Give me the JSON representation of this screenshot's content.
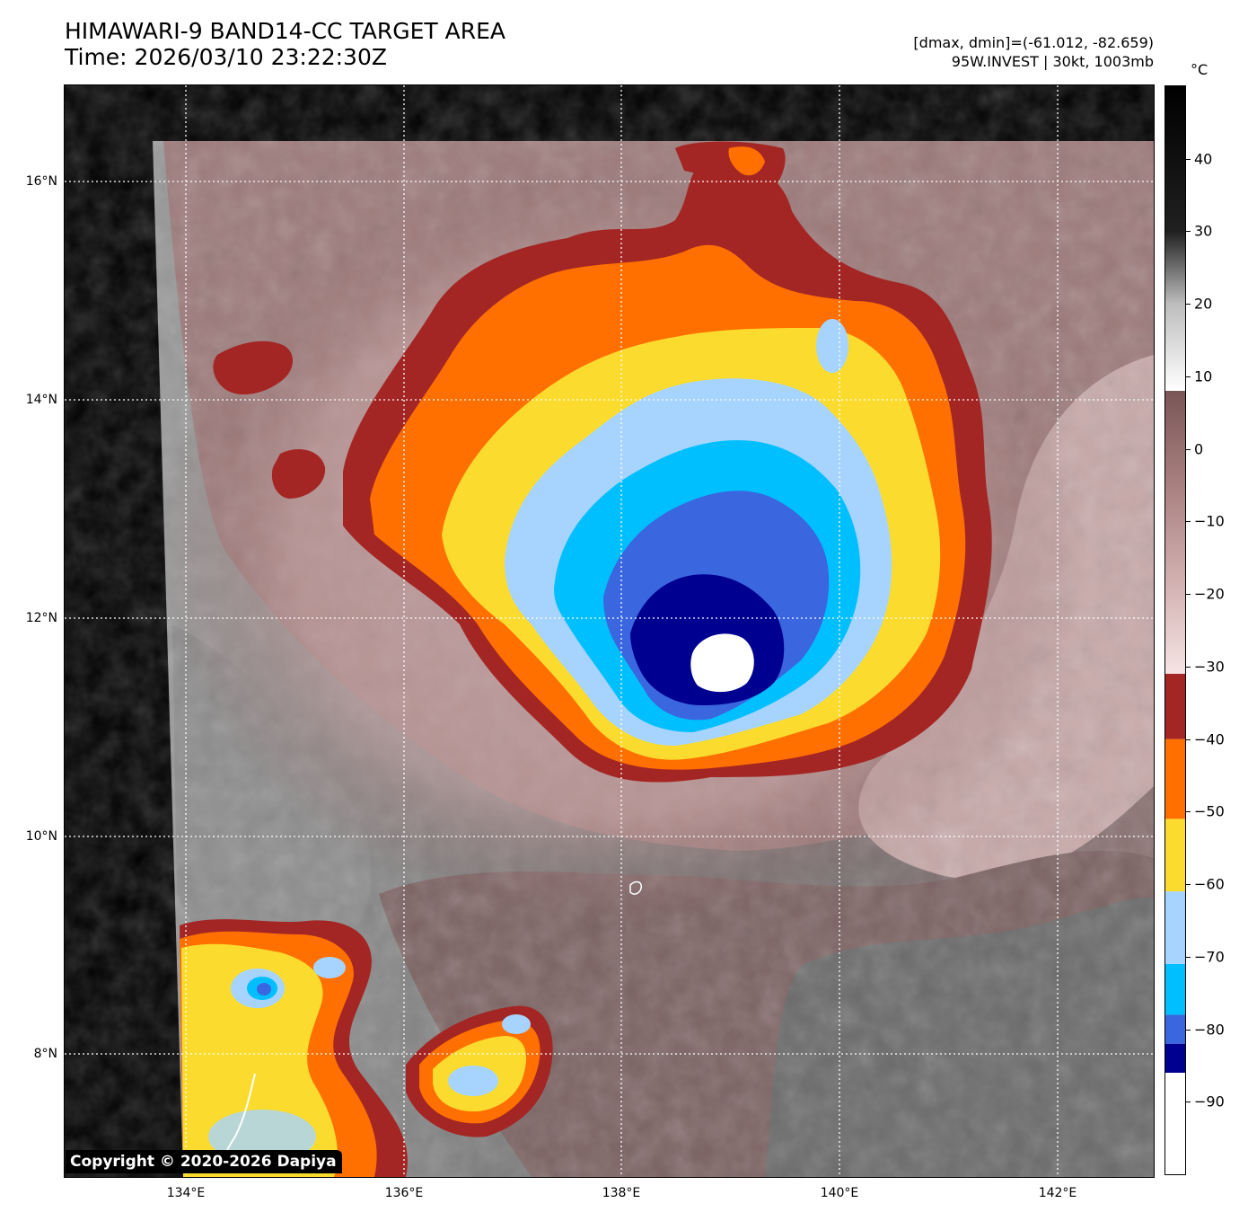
{
  "title": {
    "line1": "HIMAWARI-9 BAND14-CC TARGET AREA",
    "line2": "Time: 2026/03/10 23:22:30Z"
  },
  "info": {
    "line1": "[dmax, dmin]=(-61.012, -82.659)",
    "line2": "95W.INVEST | 30kt, 1003mb"
  },
  "map": {
    "lat_labels": [
      "16°N",
      "14°N",
      "12°N",
      "10°N",
      "8°N"
    ],
    "lon_labels": [
      "134°E",
      "136°E",
      "138°E",
      "140°E",
      "142°E"
    ],
    "lat_values": [
      16,
      14,
      12,
      10,
      8
    ],
    "lon_values": [
      134,
      136,
      138,
      140,
      142
    ],
    "extent": {
      "lon_min": 133.0,
      "lon_max": 142.9,
      "lat_min": 6.9,
      "lat_max": 16.9
    },
    "grid": "dotted white"
  },
  "copyright": "Copyright © 2020-2026 Dapiya",
  "colorbar": {
    "unit": "°C",
    "range": [
      -100,
      50
    ],
    "ticks": [
      40,
      30,
      20,
      10,
      0,
      -10,
      -20,
      -30,
      -40,
      -50,
      -60,
      -70,
      -80,
      -90
    ],
    "tick_labels": [
      "40",
      "30",
      "20",
      "10",
      "0",
      "−10",
      "−20",
      "−30",
      "−40",
      "−50",
      "−60",
      "−70",
      "−80",
      "−90"
    ],
    "bands": [
      {
        "from": -100,
        "to": -86,
        "color": "#ffffff"
      },
      {
        "from": -86,
        "to": -82,
        "color": "#000090"
      },
      {
        "from": -82,
        "to": -78,
        "color": "#3a66e0"
      },
      {
        "from": -78,
        "to": -71,
        "color": "#00bfff"
      },
      {
        "from": -71,
        "to": -61,
        "color": "#a6d4ff"
      },
      {
        "from": -61,
        "to": -51,
        "color": "#fbdc2e"
      },
      {
        "from": -51,
        "to": -40,
        "color": "#ff7000"
      },
      {
        "from": -40,
        "to": -31,
        "color": "#a32624"
      }
    ],
    "gradient": [
      {
        "t": -31,
        "color": "#f6e4e4"
      },
      {
        "t": -20,
        "color": "#d7b7b7"
      },
      {
        "t": -5,
        "color": "#a98080"
      },
      {
        "t": 8,
        "color": "#7a5656"
      },
      {
        "t": 8.01,
        "color": "#ffffff"
      },
      {
        "t": 20,
        "color": "#bdbdbd"
      },
      {
        "t": 30,
        "color": "#202020"
      },
      {
        "t": 50,
        "color": "#000000"
      }
    ]
  }
}
